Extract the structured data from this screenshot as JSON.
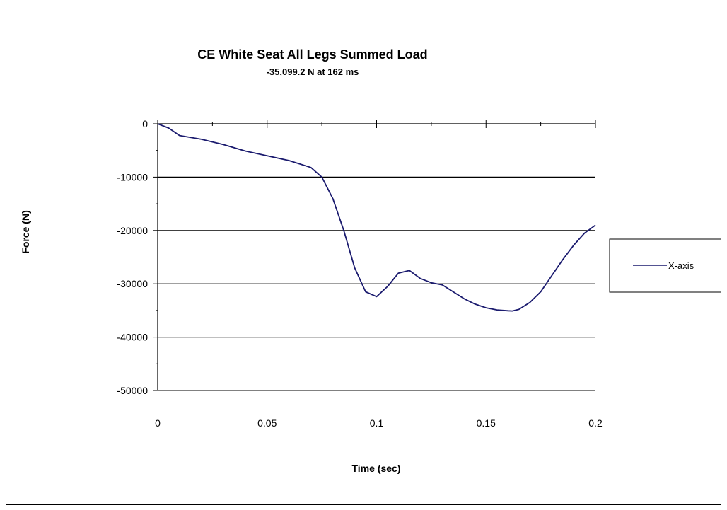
{
  "chart_data": {
    "type": "line",
    "title": "CE White Seat All Legs Summed Load",
    "subtitle": "-35,099.2 N at 162 ms",
    "xlabel": "Time (sec)",
    "ylabel": "Force (N)",
    "xlim": [
      0,
      0.2
    ],
    "ylim": [
      -50000,
      0
    ],
    "x_ticks": [
      0,
      0.05,
      0.1,
      0.15,
      0.2
    ],
    "x_tick_labels": [
      "0",
      "0.05",
      "0.1",
      "0.15",
      "0.2"
    ],
    "y_ticks": [
      0,
      -10000,
      -20000,
      -30000,
      -40000,
      -50000
    ],
    "y_tick_labels": [
      "0",
      "-10000",
      "-20000",
      "-30000",
      "-40000",
      "-50000"
    ],
    "grid": "horizontal major gridlines",
    "legend_position": "right",
    "series": [
      {
        "name": "X-axis",
        "color": "#1a1a6e",
        "x": [
          0,
          0.005,
          0.01,
          0.02,
          0.03,
          0.04,
          0.05,
          0.06,
          0.07,
          0.075,
          0.08,
          0.085,
          0.09,
          0.095,
          0.1,
          0.105,
          0.11,
          0.115,
          0.12,
          0.125,
          0.13,
          0.135,
          0.14,
          0.145,
          0.15,
          0.155,
          0.16,
          0.162,
          0.165,
          0.17,
          0.175,
          0.18,
          0.185,
          0.19,
          0.195,
          0.2
        ],
        "y": [
          0,
          -800,
          -2200,
          -2900,
          -3900,
          -5100,
          -6000,
          -6900,
          -8200,
          -10000,
          -14000,
          -20000,
          -27000,
          -31500,
          -32400,
          -30500,
          -28000,
          -27500,
          -29000,
          -29800,
          -30200,
          -31500,
          -32800,
          -33800,
          -34500,
          -34900,
          -35050,
          -35099,
          -34800,
          -33500,
          -31500,
          -28500,
          -25500,
          -22800,
          -20500,
          -19000
        ]
      }
    ]
  }
}
